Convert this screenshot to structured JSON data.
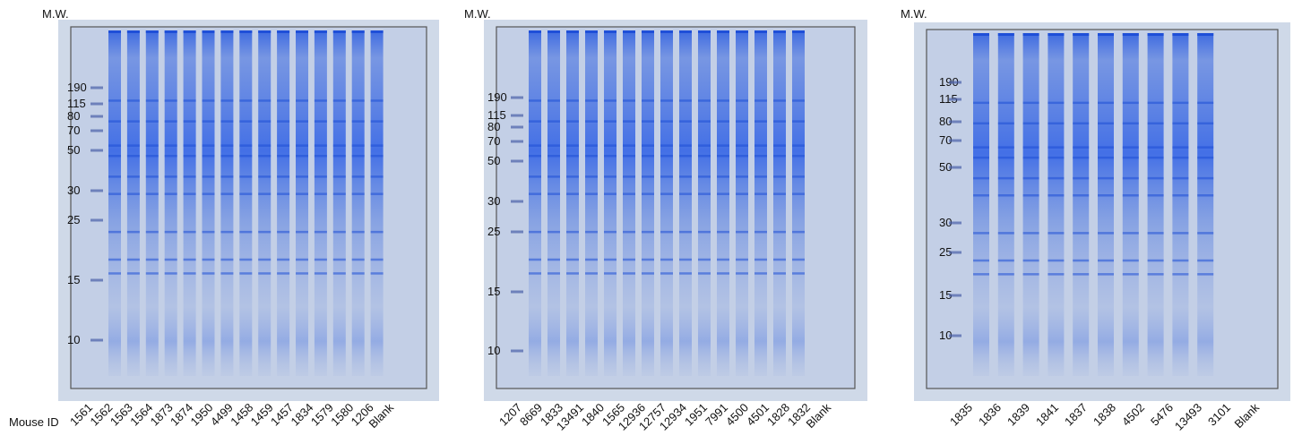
{
  "mouse_id_label": "Mouse ID",
  "gels": [
    {
      "mw_label": "M.W.",
      "mw_markers": [
        190,
        115,
        80,
        70,
        50,
        30,
        25,
        15,
        10
      ],
      "lanes": [
        "1561",
        "1562",
        "1563",
        "1564",
        "1873",
        "1874",
        "1950",
        "4499",
        "1458",
        "1459",
        "1457",
        "1834",
        "1579",
        "1580",
        "1206",
        "Blank"
      ]
    },
    {
      "mw_label": "M.W.",
      "mw_markers": [
        190,
        115,
        80,
        70,
        50,
        30,
        25,
        15,
        10
      ],
      "lanes": [
        "1207",
        "8669",
        "1833",
        "13491",
        "1840",
        "1565",
        "12936",
        "12757",
        "12934",
        "1951",
        "7991",
        "4500",
        "4501",
        "1828",
        "1832",
        "Blank"
      ]
    },
    {
      "mw_label": "M.W.",
      "mw_markers": [
        190,
        115,
        80,
        70,
        50,
        30,
        25,
        15,
        10
      ],
      "lanes": [
        "1835",
        "1836",
        "1839",
        "1841",
        "1837",
        "1838",
        "4502",
        "5476",
        "13493",
        "3101",
        "Blank"
      ]
    }
  ]
}
